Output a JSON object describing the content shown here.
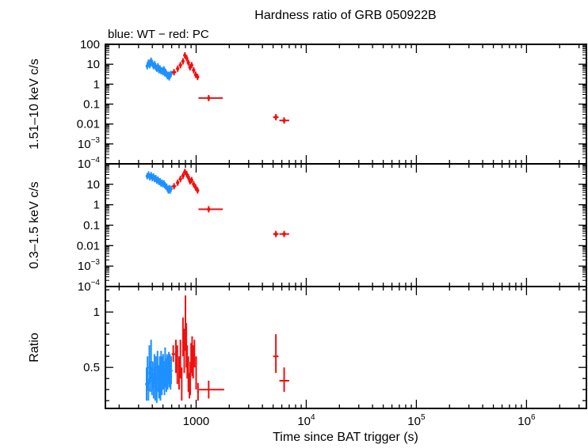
{
  "chart_data": {
    "type": "scatter",
    "title": "Hardness ratio of GRB 050922B",
    "subtitle": "blue: WT − red: PC",
    "xlabel": "Time since BAT trigger (s)",
    "xscale": "log",
    "xlim": [
      150,
      3500000
    ],
    "xticklabels": [
      {
        "value": 1000,
        "base": "1000",
        "exp": ""
      },
      {
        "value": 10000,
        "base": "10",
        "exp": "4"
      },
      {
        "value": 100000,
        "base": "10",
        "exp": "5"
      },
      {
        "value": 1000000,
        "base": "10",
        "exp": "6"
      }
    ],
    "colors": {
      "WT": "#1e90ff",
      "PC": "#ee1111"
    },
    "panels": [
      {
        "name": "hard",
        "ylabel": "1.51–10 keV c/s",
        "yscale": "log",
        "ylim": [
          0.0001,
          100
        ],
        "yticklabels": [
          {
            "value": 100,
            "base": "100",
            "exp": ""
          },
          {
            "value": 10,
            "base": "10",
            "exp": ""
          },
          {
            "value": 1,
            "base": "1",
            "exp": ""
          },
          {
            "value": 0.1,
            "base": "0.1",
            "exp": ""
          },
          {
            "value": 0.01,
            "base": "0.01",
            "exp": ""
          },
          {
            "value": 0.001,
            "base": "10",
            "exp": "−3"
          },
          {
            "value": 0.0001,
            "base": "10",
            "exp": "−4"
          }
        ],
        "series": [
          {
            "name": "WT",
            "points": [
              [
                360,
                8
              ],
              [
                370,
                12
              ],
              [
                380,
                9
              ],
              [
                390,
                15
              ],
              [
                400,
                11
              ],
              [
                410,
                8
              ],
              [
                420,
                10
              ],
              [
                430,
                7
              ],
              [
                440,
                6
              ],
              [
                450,
                8
              ],
              [
                460,
                5
              ],
              [
                470,
                6
              ],
              [
                480,
                4.5
              ],
              [
                490,
                5
              ],
              [
                500,
                4
              ],
              [
                510,
                5.5
              ],
              [
                520,
                3.5
              ],
              [
                530,
                4
              ],
              [
                540,
                3
              ],
              [
                550,
                2.5
              ],
              [
                560,
                3
              ],
              [
                570,
                2.2
              ],
              [
                580,
                2.8
              ],
              [
                590,
                3.3
              ]
            ]
          },
          {
            "name": "PC",
            "points": [
              [
                630,
                4,
                600,
                660
              ],
              [
                680,
                6,
                660,
                700
              ],
              [
                720,
                9,
                705,
                735
              ],
              [
                760,
                14,
                745,
                775
              ],
              [
                790,
                28,
                778,
                802
              ],
              [
                820,
                20,
                808,
                832
              ],
              [
                850,
                12,
                838,
                862
              ],
              [
                880,
                7,
                868,
                892
              ],
              [
                910,
                9,
                898,
                922
              ],
              [
                950,
                5,
                935,
                965
              ],
              [
                990,
                3,
                975,
                1005
              ],
              [
                1030,
                2.3,
                1010,
                1050
              ],
              [
                1300,
                0.2,
                1050,
                1750
              ],
              [
                5300,
                0.022,
                5000,
                5600
              ],
              [
                6300,
                0.015,
                5700,
                7000
              ]
            ]
          }
        ]
      },
      {
        "name": "soft",
        "ylabel": "0.3–1.5 keV c/s",
        "yscale": "log",
        "ylim": [
          0.0001,
          100
        ],
        "yticklabels": [
          {
            "value": 10,
            "base": "10",
            "exp": ""
          },
          {
            "value": 1,
            "base": "1",
            "exp": ""
          },
          {
            "value": 0.1,
            "base": "0.1",
            "exp": ""
          },
          {
            "value": 0.01,
            "base": "0.01",
            "exp": ""
          },
          {
            "value": 0.001,
            "base": "10",
            "exp": "−3"
          },
          {
            "value": 0.0001,
            "base": "10",
            "exp": "−4"
          }
        ],
        "series": [
          {
            "name": "WT",
            "points": [
              [
                360,
                25
              ],
              [
                370,
                30
              ],
              [
                380,
                22
              ],
              [
                390,
                28
              ],
              [
                400,
                20
              ],
              [
                410,
                24
              ],
              [
                420,
                18
              ],
              [
                430,
                20
              ],
              [
                440,
                15
              ],
              [
                450,
                17
              ],
              [
                460,
                13
              ],
              [
                470,
                14
              ],
              [
                480,
                11
              ],
              [
                490,
                12
              ],
              [
                500,
                10
              ],
              [
                510,
                11
              ],
              [
                520,
                9
              ],
              [
                530,
                8
              ],
              [
                540,
                7.5
              ],
              [
                550,
                6
              ],
              [
                560,
                5
              ],
              [
                570,
                6.5
              ],
              [
                580,
                5
              ],
              [
                590,
                6
              ]
            ]
          },
          {
            "name": "PC",
            "points": [
              [
                630,
                8,
                600,
                660
              ],
              [
                680,
                12,
                660,
                700
              ],
              [
                720,
                18,
                705,
                735
              ],
              [
                760,
                26,
                745,
                775
              ],
              [
                790,
                40,
                778,
                802
              ],
              [
                820,
                32,
                808,
                832
              ],
              [
                850,
                22,
                838,
                862
              ],
              [
                880,
                14,
                868,
                892
              ],
              [
                910,
                16,
                898,
                922
              ],
              [
                950,
                10,
                935,
                965
              ],
              [
                990,
                7,
                975,
                1005
              ],
              [
                1030,
                5,
                1010,
                1050
              ],
              [
                1300,
                0.6,
                1050,
                1750
              ],
              [
                5300,
                0.037,
                5000,
                5600
              ],
              [
                6300,
                0.037,
                5700,
                7000
              ]
            ]
          }
        ]
      },
      {
        "name": "ratio",
        "ylabel": "Ratio",
        "yscale": "linear",
        "ylim": [
          0.13,
          1.23
        ],
        "yticklabels": [
          {
            "value": 1,
            "base": "1",
            "exp": ""
          },
          {
            "value": 0.5,
            "base": "0.5",
            "exp": ""
          }
        ],
        "series": [
          {
            "name": "WT",
            "points": [
              [
                355,
                0.35,
                0.2,
                0.5
              ],
              [
                362,
                0.45,
                0.3,
                0.6
              ],
              [
                369,
                0.3,
                0.2,
                0.4
              ],
              [
                376,
                0.5,
                0.35,
                0.7
              ],
              [
                383,
                0.4,
                0.28,
                0.55
              ],
              [
                390,
                0.55,
                0.4,
                0.75
              ],
              [
                397,
                0.38,
                0.25,
                0.5
              ],
              [
                404,
                0.42,
                0.3,
                0.55
              ],
              [
                411,
                0.33,
                0.22,
                0.45
              ],
              [
                418,
                0.48,
                0.35,
                0.62
              ],
              [
                425,
                0.36,
                0.2,
                0.5
              ],
              [
                432,
                0.44,
                0.3,
                0.6
              ],
              [
                439,
                0.3,
                0.18,
                0.42
              ],
              [
                446,
                0.5,
                0.38,
                0.65
              ],
              [
                453,
                0.4,
                0.28,
                0.52
              ],
              [
                460,
                0.35,
                0.22,
                0.5
              ],
              [
                467,
                0.46,
                0.32,
                0.6
              ],
              [
                474,
                0.32,
                0.2,
                0.45
              ],
              [
                481,
                0.52,
                0.4,
                0.65
              ],
              [
                488,
                0.38,
                0.25,
                0.5
              ],
              [
                495,
                0.45,
                0.3,
                0.6
              ],
              [
                502,
                0.5,
                0.35,
                0.62
              ],
              [
                509,
                0.42,
                0.3,
                0.55
              ],
              [
                516,
                0.38,
                0.25,
                0.5
              ],
              [
                523,
                0.55,
                0.42,
                0.68
              ],
              [
                530,
                0.46,
                0.32,
                0.58
              ],
              [
                537,
                0.4,
                0.28,
                0.52
              ],
              [
                544,
                0.5,
                0.38,
                0.62
              ],
              [
                551,
                0.43,
                0.3,
                0.56
              ],
              [
                558,
                0.48,
                0.35,
                0.6
              ],
              [
                565,
                0.52,
                0.4,
                0.64
              ],
              [
                572,
                0.45,
                0.32,
                0.58
              ],
              [
                579,
                0.5,
                0.38,
                0.62
              ],
              [
                586,
                0.42,
                0.3,
                0.54
              ],
              [
                593,
                0.47,
                0.35,
                0.6
              ]
            ]
          },
          {
            "name": "PC",
            "points": [
              [
                620,
                0.62,
                0.55,
                0.7,
                600,
                645
              ],
              [
                655,
                0.6,
                0.45,
                0.75,
                645,
                665
              ],
              [
                675,
                0.52,
                0.35,
                0.7,
                665,
                685
              ],
              [
                700,
                0.45,
                0.3,
                0.6,
                690,
                710
              ],
              [
                720,
                0.55,
                0.4,
                0.75,
                710,
                730
              ],
              [
                740,
                0.3,
                0.2,
                0.5,
                735,
                745
              ],
              [
                760,
                0.8,
                0.6,
                0.95,
                752,
                768
              ],
              [
                780,
                0.65,
                0.45,
                0.85,
                772,
                788
              ],
              [
                800,
                0.85,
                0.65,
                1.15,
                792,
                808
              ],
              [
                815,
                0.7,
                0.5,
                0.9,
                808,
                822
              ],
              [
                830,
                0.55,
                0.4,
                0.7,
                822,
                838
              ],
              [
                850,
                0.45,
                0.28,
                0.6,
                842,
                858
              ],
              [
                870,
                0.35,
                0.22,
                0.45,
                862,
                878
              ],
              [
                885,
                0.4,
                0.25,
                0.55,
                878,
                892
              ],
              [
                900,
                0.58,
                0.45,
                0.72,
                892,
                908
              ],
              [
                920,
                0.6,
                0.42,
                0.78,
                910,
                930
              ],
              [
                940,
                0.55,
                0.4,
                0.7,
                930,
                950
              ],
              [
                965,
                0.62,
                0.5,
                0.75,
                950,
                980
              ],
              [
                1000,
                0.45,
                0.3,
                0.6,
                985,
                1015
              ],
              [
                1040,
                0.28,
                0.2,
                0.36,
                1020,
                1060
              ],
              [
                1300,
                0.3,
                0.22,
                0.38,
                1060,
                1800
              ],
              [
                5300,
                0.6,
                0.45,
                0.8,
                5000,
                5600
              ],
              [
                6300,
                0.38,
                0.28,
                0.5,
                5700,
                7000
              ]
            ]
          }
        ]
      }
    ]
  }
}
